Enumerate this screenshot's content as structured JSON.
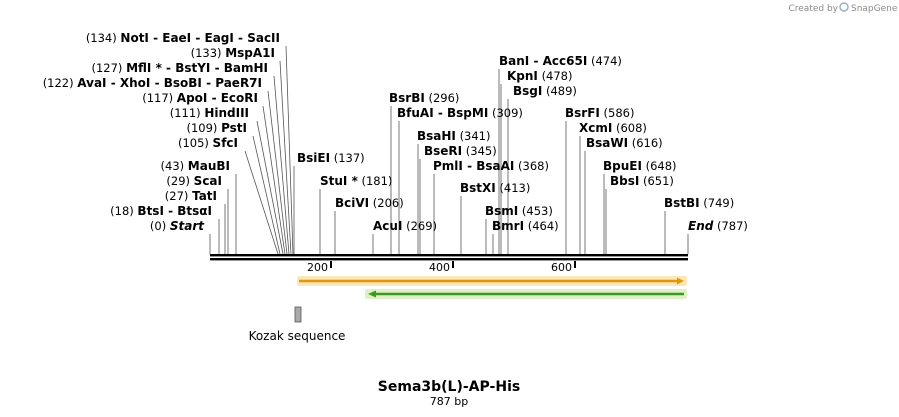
{
  "credit": "Created by",
  "brand": "SnapGene",
  "title": "Sema3b(L)-AP-His",
  "length_label": "787 bp",
  "features": [
    {
      "label": "Kozak sequence"
    }
  ],
  "ticks": [
    "200",
    "400",
    "600"
  ],
  "sites": [
    {
      "pos": "(134)",
      "parts": [
        "NotI",
        "EaeI",
        "EagI",
        "SacII"
      ]
    },
    {
      "pos": "(133)",
      "parts": [
        "MspA1I"
      ]
    },
    {
      "pos": "(127)",
      "parts": [
        "MflI *",
        "BstYI",
        "BamHI"
      ]
    },
    {
      "pos": "(122)",
      "parts": [
        "AvaI",
        "XhoI",
        "BsoBI",
        "PaeR7I"
      ]
    },
    {
      "pos": "(117)",
      "parts": [
        "ApoI",
        "EcoRI"
      ]
    },
    {
      "pos": "(111)",
      "parts": [
        "HindIII"
      ]
    },
    {
      "pos": "(109)",
      "parts": [
        "PstI"
      ]
    },
    {
      "pos": "(105)",
      "parts": [
        "SfcI"
      ]
    },
    {
      "pos": "(43)",
      "parts": [
        "MauBI"
      ]
    },
    {
      "pos": "(29)",
      "parts": [
        "ScaI"
      ]
    },
    {
      "pos": "(27)",
      "parts": [
        "TatI"
      ]
    },
    {
      "pos": "(18)",
      "parts": [
        "BtsI",
        "BtsαI"
      ]
    },
    {
      "pos": "(0)",
      "parts": [
        "Start"
      ]
    },
    {
      "pos": "(137)",
      "parts": [
        "BsiEI"
      ]
    },
    {
      "pos": "(181)",
      "parts": [
        "StuI *"
      ]
    },
    {
      "pos": "(206)",
      "parts": [
        "BciVI"
      ]
    },
    {
      "pos": "(269)",
      "parts": [
        "AcuI"
      ]
    },
    {
      "pos": "(296)",
      "parts": [
        "BsrBI"
      ]
    },
    {
      "pos": "(309)",
      "parts": [
        "BfuAI",
        "BspMI"
      ]
    },
    {
      "pos": "(341)",
      "parts": [
        "BsaHI"
      ]
    },
    {
      "pos": "(345)",
      "parts": [
        "BseRI"
      ]
    },
    {
      "pos": "(368)",
      "parts": [
        "PmlI",
        "BsaAI"
      ]
    },
    {
      "pos": "(413)",
      "parts": [
        "BstXI"
      ]
    },
    {
      "pos": "(453)",
      "parts": [
        "BsmI"
      ]
    },
    {
      "pos": "(464)",
      "parts": [
        "BmrI"
      ]
    },
    {
      "pos": "(474)",
      "parts": [
        "BanI",
        "Acc65I"
      ]
    },
    {
      "pos": "(478)",
      "parts": [
        "KpnI"
      ]
    },
    {
      "pos": "(489)",
      "parts": [
        "BsgI"
      ]
    },
    {
      "pos": "(586)",
      "parts": [
        "BsrFI"
      ]
    },
    {
      "pos": "(608)",
      "parts": [
        "XcmI"
      ]
    },
    {
      "pos": "(616)",
      "parts": [
        "BsaWI"
      ]
    },
    {
      "pos": "(648)",
      "parts": [
        "BpuEI"
      ]
    },
    {
      "pos": "(651)",
      "parts": [
        "BbsI"
      ]
    },
    {
      "pos": "(749)",
      "parts": [
        "BstBI"
      ]
    },
    {
      "pos": "(787)",
      "parts": [
        "End"
      ]
    }
  ]
}
